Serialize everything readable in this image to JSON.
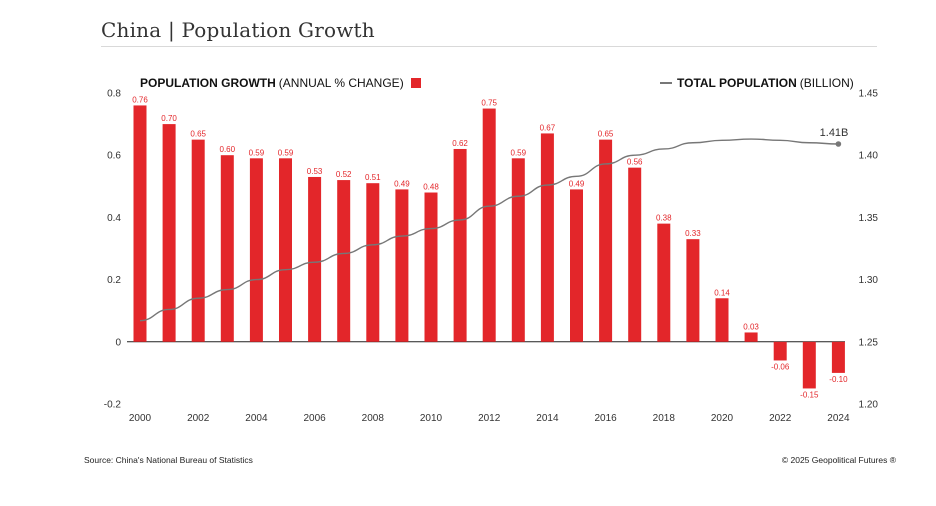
{
  "title": "China | Population Growth",
  "legend": {
    "left_bold": "POPULATION GROWTH",
    "left_rest": "(ANNUAL % CHANGE)",
    "right_bold": "TOTAL POPULATION",
    "right_rest": "(BILLION)"
  },
  "footer": {
    "source": "Source: China's National Bureau of Statistics",
    "copyright": "© 2025 Geopolitical Futures ®"
  },
  "colors": {
    "bar": "#e3262a",
    "line": "#777777",
    "label": "#e3262a"
  },
  "chart_data": {
    "type": "bar",
    "x": [
      2000,
      2001,
      2002,
      2003,
      2004,
      2005,
      2006,
      2007,
      2008,
      2009,
      2010,
      2011,
      2012,
      2013,
      2014,
      2015,
      2016,
      2017,
      2018,
      2019,
      2020,
      2021,
      2022,
      2023,
      2024
    ],
    "series": [
      {
        "name": "POPULATION GROWTH (ANNUAL % CHANGE)",
        "type": "bar",
        "axis": "left",
        "values": [
          0.76,
          0.7,
          0.65,
          0.6,
          0.59,
          0.59,
          0.53,
          0.52,
          0.51,
          0.49,
          0.48,
          0.62,
          0.75,
          0.59,
          0.67,
          0.49,
          0.65,
          0.56,
          0.38,
          0.33,
          0.14,
          0.03,
          -0.06,
          -0.15,
          -0.1
        ],
        "labels": [
          "0.76",
          "0.70",
          "0.65",
          "0.60",
          "0.59",
          "0.59",
          "0.53",
          "0.52",
          "0.51",
          "0.49",
          "0.48",
          "0.62",
          "0.75",
          "0.59",
          "0.67",
          "0.49",
          "0.65",
          "0.56",
          "0.38",
          "0.33",
          "0.14",
          "0.03",
          "-0.06",
          "-0.15",
          "-0.10"
        ]
      },
      {
        "name": "TOTAL POPULATION (BILLION)",
        "type": "line",
        "axis": "right",
        "values": [
          1.267,
          1.276,
          1.285,
          1.292,
          1.3,
          1.308,
          1.314,
          1.321,
          1.328,
          1.335,
          1.341,
          1.348,
          1.359,
          1.367,
          1.376,
          1.383,
          1.393,
          1.4,
          1.405,
          1.41,
          1.412,
          1.413,
          1.412,
          1.41,
          1.409
        ],
        "end_label": "1.41B"
      }
    ],
    "xlabel": "",
    "ylabel": "",
    "ylim": [
      -0.2,
      0.8
    ],
    "y_ticks": [
      "0.8",
      "0.6",
      "0.4",
      "0.2",
      "0",
      "-0.2"
    ],
    "y2lim": [
      1.2,
      1.45
    ],
    "y2_ticks": [
      "1.45",
      "1.40",
      "1.35",
      "1.30",
      "1.25",
      "1.20"
    ],
    "x_ticks": [
      "2000",
      "2002",
      "2004",
      "2006",
      "2008",
      "2010",
      "2012",
      "2014",
      "2016",
      "2018",
      "2020",
      "2022",
      "2024"
    ],
    "grid": false,
    "legend": "top"
  }
}
